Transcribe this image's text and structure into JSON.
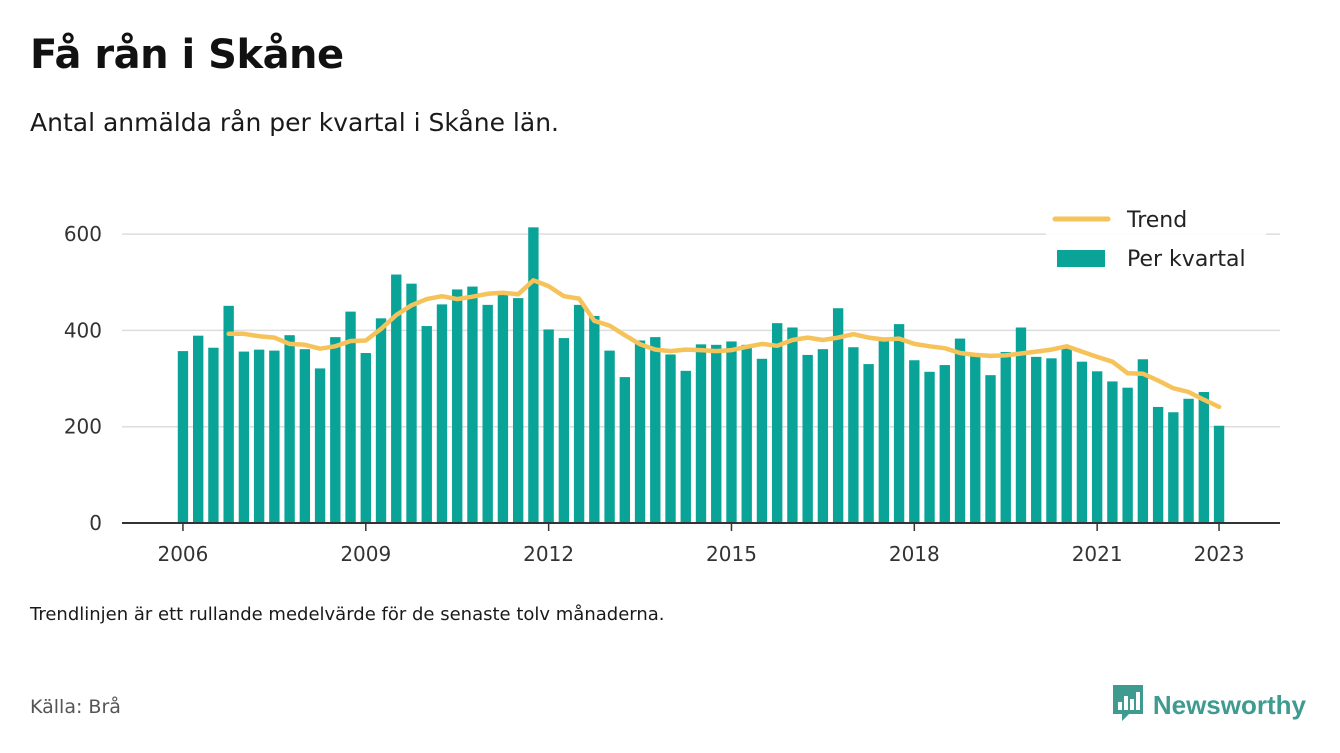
{
  "header": {
    "title": "Få rån i Skåne",
    "subtitle": "Antal anmälda rån per kvartal i Skåne län."
  },
  "footer": {
    "note": "Trendlinjen är ett rullande medelvärde för de senaste tolv månaderna.",
    "source": "Källa: Brå",
    "brand": "Newsworthy",
    "brand_icon": "bar-chart-logo-icon"
  },
  "colors": {
    "bars": "#0aa398",
    "trend": "#f5c35a",
    "grid": "#dddddd",
    "axis": "#333333",
    "brand": "#3f9b8f"
  },
  "chart_data": {
    "type": "bar",
    "title": "Få rån i Skåne",
    "subtitle": "Antal anmälda rån per kvartal i Skåne län.",
    "x_unit": "year (quarterly)",
    "x_start": 2006.0,
    "x_step": 0.25,
    "xlim": [
      2005.0,
      2024.0
    ],
    "ylim": [
      0,
      650
    ],
    "yticks": [
      0,
      200,
      400,
      600
    ],
    "xticks": [
      2006,
      2009,
      2012,
      2015,
      2018,
      2021,
      2023
    ],
    "grid": true,
    "legend_position": "top-right",
    "legend": [
      "Trend",
      "Per kvartal"
    ],
    "series": [
      {
        "name": "Per kvartal",
        "type": "bar",
        "values": [
          357,
          389,
          364,
          451,
          356,
          360,
          358,
          390,
          361,
          321,
          386,
          439,
          353,
          425,
          516,
          497,
          409,
          454,
          485,
          491,
          453,
          478,
          467,
          614,
          402,
          384,
          453,
          430,
          358,
          303,
          379,
          386,
          350,
          316,
          371,
          370,
          377,
          370,
          341,
          415,
          406,
          349,
          361,
          446,
          365,
          330,
          380,
          413,
          338,
          314,
          328,
          383,
          349,
          307,
          355,
          406,
          345,
          342,
          364,
          335,
          315,
          294,
          281,
          340,
          241,
          230,
          258,
          272,
          202
        ]
      },
      {
        "name": "Trend",
        "type": "line",
        "x": [
          2006.75,
          2007.0,
          2007.25,
          2007.5,
          2007.75,
          2008.0,
          2008.25,
          2008.5,
          2008.75,
          2009.0,
          2009.25,
          2009.5,
          2009.75,
          2010.0,
          2010.25,
          2010.5,
          2010.75,
          2011.0,
          2011.25,
          2011.5,
          2011.75,
          2012.0,
          2012.25,
          2012.5,
          2012.75,
          2013.0,
          2013.25,
          2013.5,
          2013.75,
          2014.0,
          2014.25,
          2014.5,
          2014.75,
          2015.0,
          2015.25,
          2015.5,
          2015.75,
          2016.0,
          2016.25,
          2016.5,
          2016.75,
          2017.0,
          2017.25,
          2017.5,
          2017.75,
          2018.0,
          2018.25,
          2018.5,
          2018.75,
          2019.0,
          2019.25,
          2019.5,
          2019.75,
          2020.0,
          2020.25,
          2020.5,
          2020.75,
          2021.0,
          2021.25,
          2021.5,
          2021.75,
          2022.0,
          2022.25,
          2022.5,
          2022.75,
          2023.0
        ],
        "values": [
          393,
          393,
          388,
          385,
          372,
          370,
          362,
          367,
          378,
          379,
          403,
          432,
          452,
          465,
          471,
          465,
          470,
          476,
          478,
          475,
          504,
          492,
          471,
          466,
          420,
          410,
          390,
          371,
          360,
          357,
          360,
          359,
          357,
          359,
          366,
          372,
          368,
          380,
          385,
          380,
          385,
          392,
          385,
          381,
          383,
          372,
          367,
          363,
          353,
          349,
          347,
          348,
          352,
          356,
          360,
          367,
          356,
          345,
          335,
          311,
          310,
          296,
          280,
          272,
          256,
          241
        ]
      }
    ]
  }
}
